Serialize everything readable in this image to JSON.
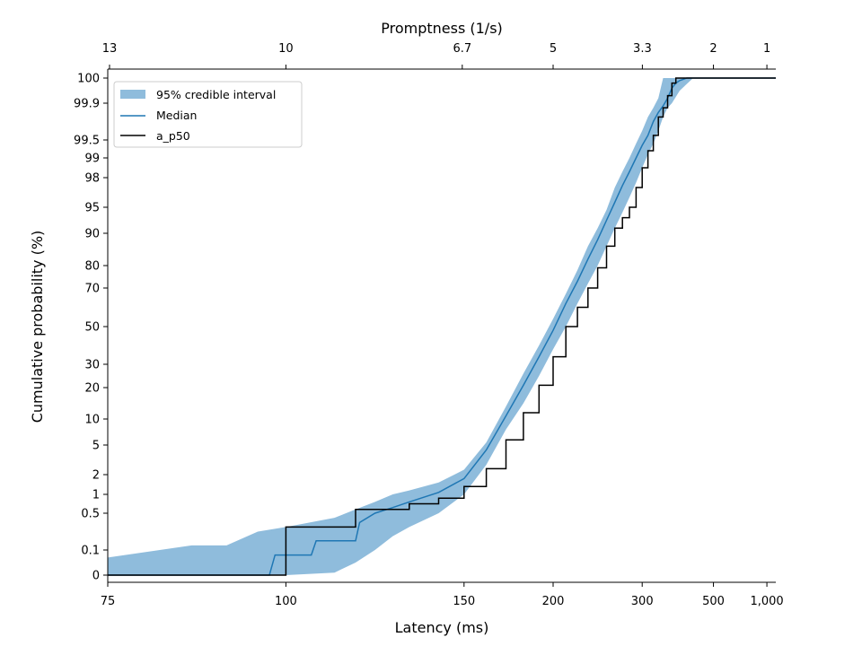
{
  "chart_data": {
    "type": "line",
    "title": "",
    "xlabel": "Latency (ms)",
    "ylabel": "Cumulative probability (%)",
    "top_xlabel": "Promptness (1/s)",
    "x_ticks": [
      "75",
      "100",
      "150",
      "200",
      "300",
      "500",
      "1,000"
    ],
    "x_tick_values": [
      75,
      100,
      150,
      200,
      300,
      500,
      1000
    ],
    "top_ticks": [
      "13",
      "10",
      "6.7",
      "5",
      "3.3",
      "2",
      "1"
    ],
    "top_tick_values": [
      13.3,
      10,
      6.7,
      5,
      3.33,
      2,
      1
    ],
    "y_ticks": [
      "0",
      "0.1",
      "0.5",
      "1",
      "2",
      "5",
      "10",
      "20",
      "30",
      "50",
      "70",
      "80",
      "90",
      "95",
      "98",
      "99",
      "99.5",
      "99.9",
      "100"
    ],
    "legend_position": "top-left",
    "series": [
      {
        "name": "95% credible interval",
        "kind": "band",
        "color": "#8fbcdc",
        "x": [
          75,
          85,
          90,
          95,
          100,
          110,
          115,
          120,
          125,
          130,
          140,
          150,
          160,
          170,
          180,
          190,
          200,
          210,
          220,
          230,
          240,
          250,
          260,
          270,
          280,
          290,
          300,
          310,
          320,
          330,
          340,
          350,
          360,
          380,
          420,
          500,
          1200
        ],
        "lower": [
          0,
          0,
          0,
          0,
          0,
          0.01,
          0.05,
          0.1,
          0.25,
          0.35,
          0.5,
          1,
          3,
          8,
          15,
          25,
          38,
          50,
          62,
          72,
          80,
          86,
          91,
          94,
          96,
          97.5,
          98.5,
          99.1,
          99.4,
          99.6,
          99.75,
          99.85,
          99.9,
          99.95,
          100,
          100,
          100
        ],
        "upper": [
          0.07,
          0.15,
          0.15,
          0.3,
          0.35,
          0.45,
          0.6,
          0.8,
          1,
          1.2,
          1.6,
          2.5,
          5.5,
          14,
          26,
          40,
          54,
          67,
          78,
          86,
          91,
          94.5,
          97,
          98.3,
          99,
          99.4,
          99.6,
          99.75,
          99.85,
          99.92,
          100,
          100,
          100,
          100,
          100,
          100,
          100
        ]
      },
      {
        "name": "Median",
        "kind": "line",
        "color": "#1f77b4",
        "x": [
          75,
          97,
          98,
          105,
          106,
          115,
          116,
          120,
          125,
          130,
          140,
          150,
          160,
          170,
          180,
          190,
          200,
          210,
          220,
          230,
          240,
          250,
          260,
          270,
          280,
          290,
          300,
          310,
          320,
          330,
          340,
          350,
          360,
          370,
          380,
          400,
          1200
        ],
        "y": [
          0,
          0,
          0.08,
          0.08,
          0.2,
          0.2,
          0.4,
          0.5,
          0.65,
          0.8,
          1.1,
          1.8,
          4.5,
          11,
          21,
          34,
          48,
          62,
          73,
          82,
          88,
          92.5,
          95.5,
          97.2,
          98.3,
          99,
          99.35,
          99.55,
          99.7,
          99.8,
          99.87,
          99.92,
          99.96,
          99.98,
          99.99,
          100,
          100
        ]
      },
      {
        "name": "a_p50",
        "kind": "step",
        "color": "#000000",
        "x": [
          75,
          100,
          115,
          130,
          140,
          150,
          160,
          170,
          180,
          190,
          200,
          210,
          220,
          230,
          240,
          250,
          260,
          270,
          280,
          290,
          300,
          310,
          320,
          330,
          340,
          350,
          360,
          370,
          1200
        ],
        "y": [
          0,
          0.35,
          0.6,
          0.75,
          0.9,
          1.4,
          2.6,
          6,
          12,
          21,
          34,
          50,
          60,
          70,
          79,
          86,
          91,
          93,
          95,
          97,
          98.5,
          99.2,
          99.55,
          99.75,
          99.85,
          99.93,
          99.98,
          100,
          100
        ]
      }
    ]
  }
}
